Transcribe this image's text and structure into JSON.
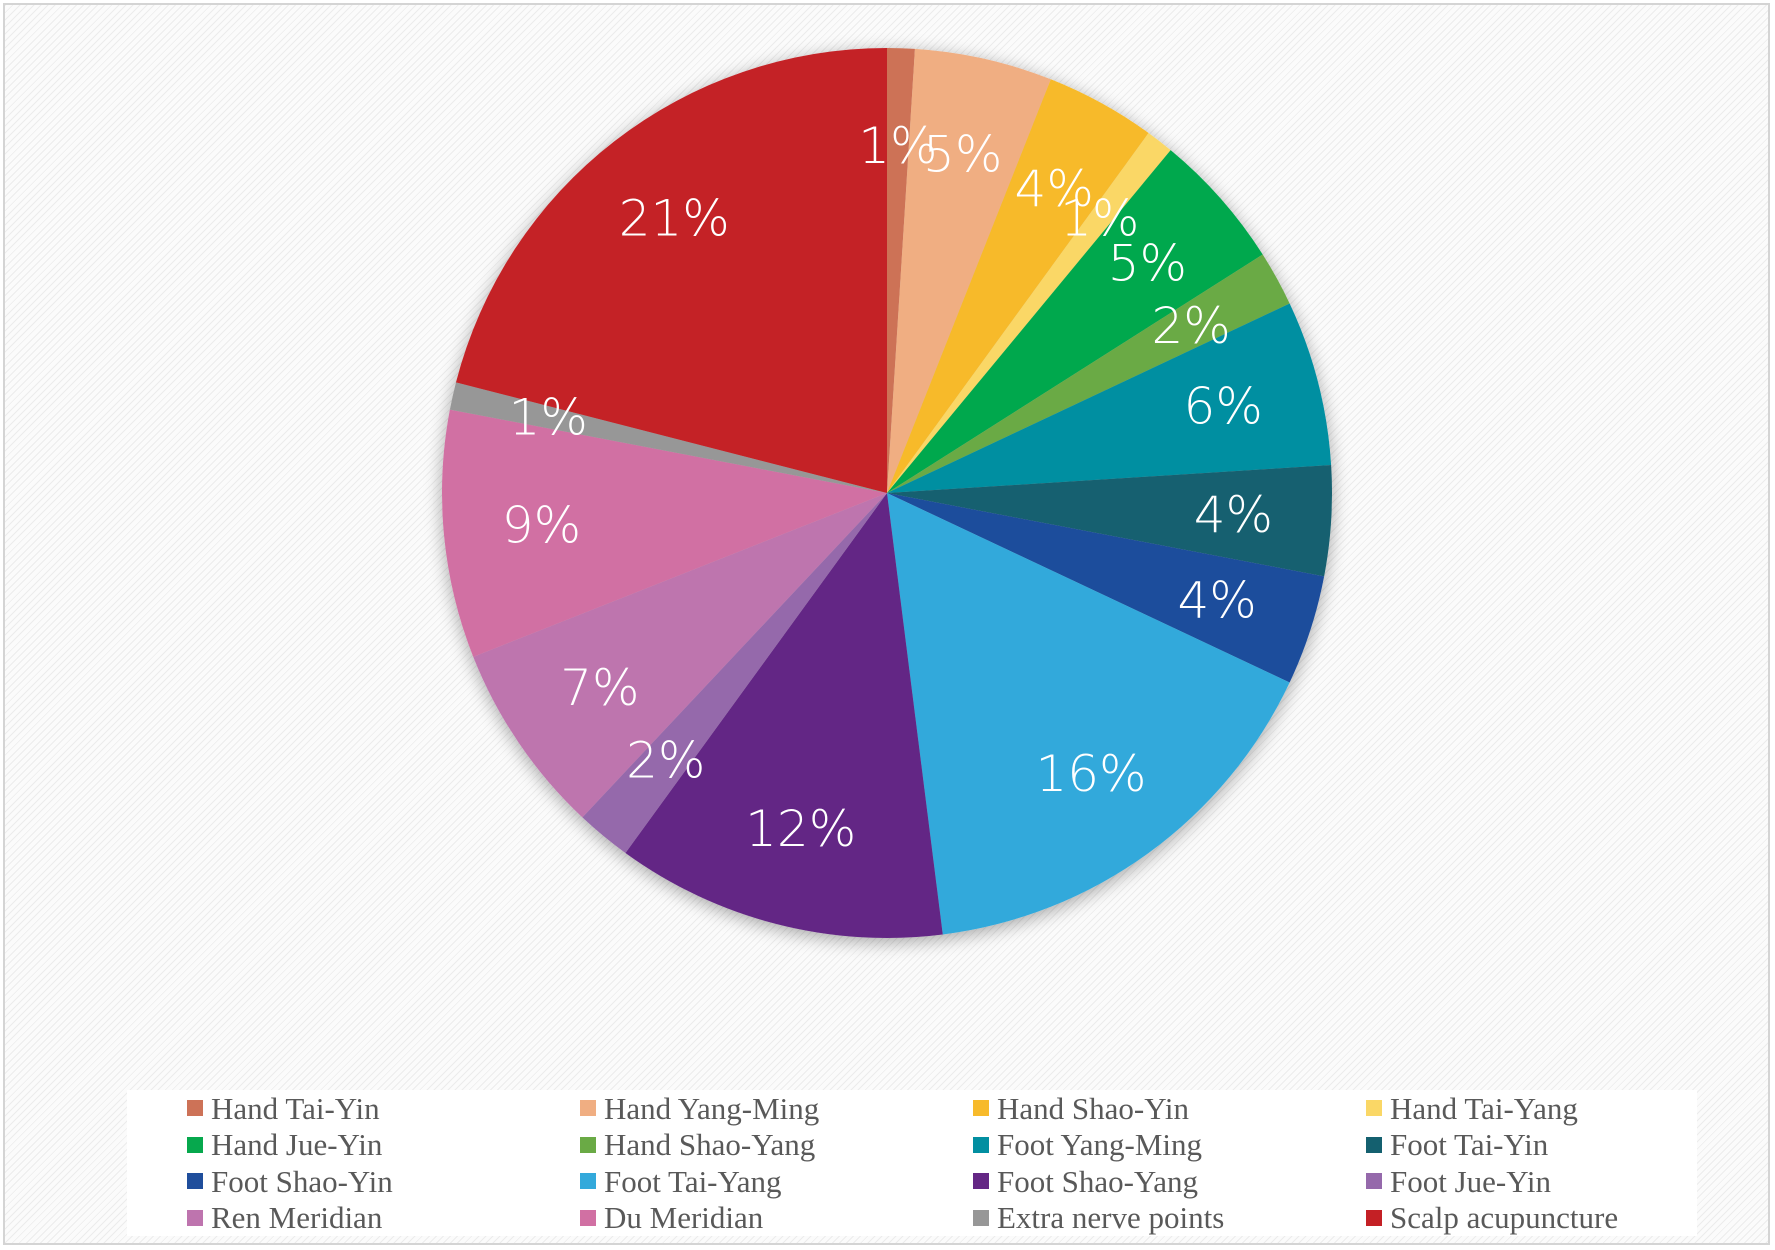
{
  "chart_data": {
    "type": "pie",
    "title": "",
    "legend_position": "bottom",
    "start_angle_deg": 0,
    "direction": "clockwise",
    "slices": [
      {
        "label": "Hand Tai-Yin",
        "value": 1,
        "display": "1%",
        "color": "#cd7257"
      },
      {
        "label": "Hand Yang-Ming",
        "value": 5,
        "display": "5%",
        "color": "#f0ae82"
      },
      {
        "label": "Hand Shao-Yin",
        "value": 4,
        "display": "4%",
        "color": "#f7ba2b"
      },
      {
        "label": "Hand Tai-Yang",
        "value": 1,
        "display": "1%",
        "color": "#fad766"
      },
      {
        "label": "Hand Jue-Yin",
        "value": 5,
        "display": "5%",
        "color": "#06a84d"
      },
      {
        "label": "Hand Shao-Yang",
        "value": 2,
        "display": "2%",
        "color": "#6aaa45"
      },
      {
        "label": "Foot Yang-Ming",
        "value": 6,
        "display": "6%",
        "color": "#028fa1"
      },
      {
        "label": "Foot Tai-Yin",
        "value": 4,
        "display": "4%",
        "color": "#14606f"
      },
      {
        "label": "Foot Shao-Yin",
        "value": 4,
        "display": "4%",
        "color": "#1f4e9c"
      },
      {
        "label": "Foot Tai-Yang",
        "value": 16,
        "display": "16%",
        "color": "#33a9db"
      },
      {
        "label": "Foot Shao-Yang",
        "value": 12,
        "display": "12%",
        "color": "#642785"
      },
      {
        "label": "Foot Jue-Yin",
        "value": 2,
        "display": "2%",
        "color": "#9569ab"
      },
      {
        "label": "Ren Meridian",
        "value": 7,
        "display": "7%",
        "color": "#be74ae"
      },
      {
        "label": "Du Meridian",
        "value": 9,
        "display": "9%",
        "color": "#d170a3"
      },
      {
        "label": "Extra nerve points",
        "value": 1,
        "display": "1%",
        "color": "#979797"
      },
      {
        "label": "Scalp acupuncture",
        "value": 21,
        "display": "21%",
        "color": "#c42025"
      }
    ]
  }
}
